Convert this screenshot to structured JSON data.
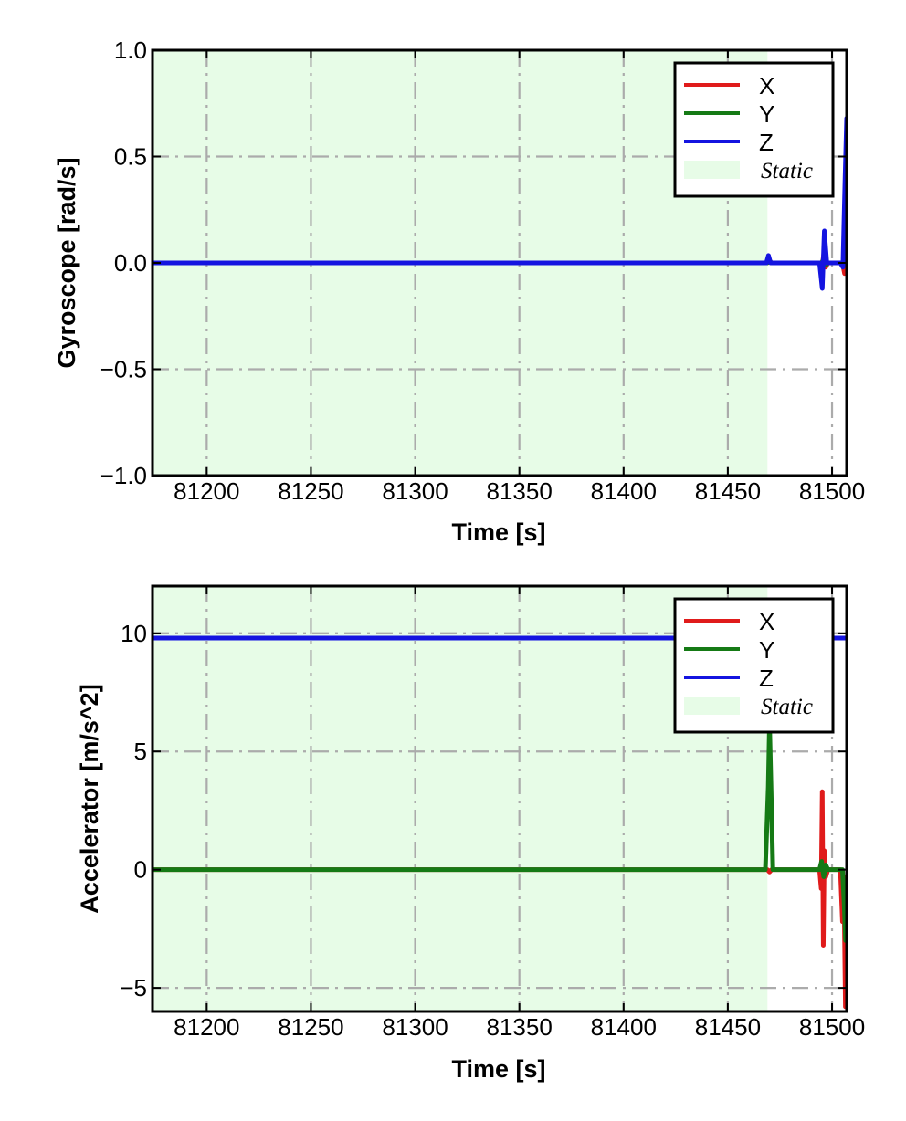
{
  "chart_data": [
    {
      "type": "line",
      "ylabel": "Gyroscope [rad/s]",
      "xlabel": "Time [s]",
      "xlim": [
        81174,
        81507
      ],
      "ylim": [
        -1.0,
        1.0
      ],
      "xticks": [
        81200,
        81250,
        81300,
        81350,
        81400,
        81450,
        81500
      ],
      "xtick_labels": [
        "81200",
        "81250",
        "81300",
        "81350",
        "81400",
        "81450",
        "81500"
      ],
      "yticks": [
        1.0,
        0.5,
        0.0,
        -0.5,
        -1.0
      ],
      "ytick_labels": [
        "1.0",
        "0.5",
        "0.0",
        "−0.5",
        "−1.0"
      ],
      "grid": true,
      "legend_position": "top-right",
      "static_region": {
        "label": "Static",
        "x": [
          81174,
          81469
        ]
      },
      "series": [
        {
          "name": "X",
          "color": "#e01b1b",
          "points": [
            [
              81174,
              0
            ],
            [
              81469,
              0
            ],
            [
              81470,
              0.01
            ],
            [
              81471,
              0
            ],
            [
              81494,
              0
            ],
            [
              81495,
              -0.03
            ],
            [
              81496,
              0.04
            ],
            [
              81497,
              -0.02
            ],
            [
              81498,
              0
            ],
            [
              81505,
              0
            ],
            [
              81506,
              -0.05
            ],
            [
              81506.5,
              0
            ],
            [
              81507,
              0
            ]
          ]
        },
        {
          "name": "Y",
          "color": "#157a15",
          "points": [
            [
              81174,
              0
            ],
            [
              81469,
              0
            ],
            [
              81470,
              0.01
            ],
            [
              81471,
              0
            ],
            [
              81495,
              0
            ],
            [
              81496,
              0.02
            ],
            [
              81497,
              -0.01
            ],
            [
              81498,
              0
            ],
            [
              81507,
              0
            ]
          ]
        },
        {
          "name": "Z",
          "color": "#1414e0",
          "points": [
            [
              81174,
              0
            ],
            [
              81468.5,
              0
            ],
            [
              81469.5,
              0.035
            ],
            [
              81470.5,
              0
            ],
            [
              81494,
              0
            ],
            [
              81495.3,
              -0.12
            ],
            [
              81496.3,
              0.15
            ],
            [
              81497.5,
              0
            ],
            [
              81504,
              0
            ],
            [
              81505.2,
              -0.02
            ],
            [
              81506.2,
              0.38
            ],
            [
              81507,
              0.68
            ]
          ]
        }
      ]
    },
    {
      "type": "line",
      "ylabel": "Accelerator [m/s^2]",
      "xlabel": "Time [s]",
      "xlim": [
        81174,
        81507
      ],
      "ylim": [
        -6,
        12
      ],
      "xticks": [
        81200,
        81250,
        81300,
        81350,
        81400,
        81450,
        81500
      ],
      "xtick_labels": [
        "81200",
        "81250",
        "81300",
        "81350",
        "81400",
        "81450",
        "81500"
      ],
      "yticks": [
        10,
        5,
        0,
        -5
      ],
      "ytick_labels": [
        "10",
        "5",
        "0",
        "−5"
      ],
      "grid": true,
      "legend_position": "top-right",
      "static_region": {
        "label": "Static",
        "x": [
          81174,
          81469
        ]
      },
      "series": [
        {
          "name": "X",
          "color": "#e01b1b",
          "points": [
            [
              81174,
              0
            ],
            [
              81469,
              0
            ],
            [
              81470,
              -0.1
            ],
            [
              81471,
              0
            ],
            [
              81494,
              0
            ],
            [
              81494.8,
              -0.8
            ],
            [
              81495.3,
              3.3
            ],
            [
              81495.8,
              -3.2
            ],
            [
              81496.3,
              0.8
            ],
            [
              81497,
              -0.3
            ],
            [
              81498,
              0
            ],
            [
              81504,
              0
            ],
            [
              81505,
              -2.2
            ],
            [
              81505.7,
              -0.6
            ],
            [
              81506.4,
              -5.8
            ],
            [
              81507,
              -0.3
            ]
          ]
        },
        {
          "name": "Y",
          "color": "#157a15",
          "points": [
            [
              81174,
              0
            ],
            [
              81468,
              0
            ],
            [
              81469.4,
              3.5
            ],
            [
              81470,
              6.2
            ],
            [
              81470.8,
              3.2
            ],
            [
              81471.6,
              0
            ],
            [
              81494,
              0
            ],
            [
              81495,
              0.35
            ],
            [
              81496,
              -0.3
            ],
            [
              81497,
              0.2
            ],
            [
              81498,
              0
            ],
            [
              81505,
              0
            ],
            [
              81505.8,
              -1.4
            ],
            [
              81506.5,
              -3.0
            ],
            [
              81507,
              -0.5
            ]
          ]
        },
        {
          "name": "Z",
          "color": "#1414e0",
          "points": [
            [
              81174,
              9.8
            ],
            [
              81468,
              9.8
            ],
            [
              81469,
              9.8
            ],
            [
              81471,
              9.8
            ],
            [
              81507,
              9.8
            ]
          ]
        }
      ]
    }
  ]
}
